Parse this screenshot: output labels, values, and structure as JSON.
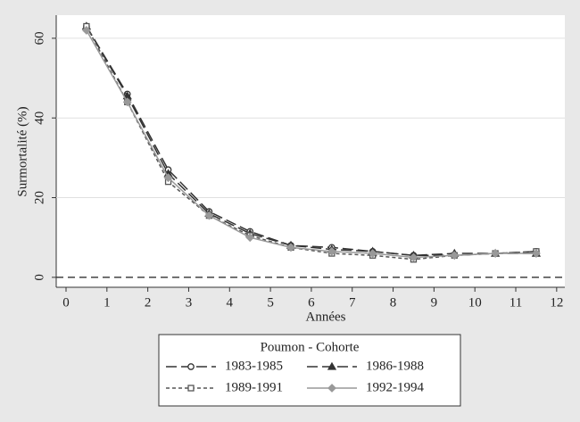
{
  "chart_data": {
    "type": "line",
    "x_label": "Années",
    "y_label": "Surmortalité (%)",
    "legend_title": "Poumon - Cohorte",
    "x": [
      0.5,
      1.5,
      2.5,
      3.5,
      4.5,
      5.5,
      6.5,
      7.5,
      8.5,
      9.5,
      10.5,
      11.5
    ],
    "series": [
      {
        "name": "1983-1985",
        "color": "#333333",
        "marker": "circle",
        "dash": "long",
        "values": [
          63,
          46,
          27,
          16.5,
          11.5,
          8,
          7.5,
          6.5,
          5.5,
          5.5,
          6,
          6.5
        ]
      },
      {
        "name": "1986-1988",
        "color": "#333333",
        "marker": "triangle",
        "dash": "long",
        "values": [
          63,
          45.5,
          26,
          16,
          11,
          8,
          7,
          6.5,
          5.5,
          6,
          6,
          6
        ]
      },
      {
        "name": "1989-1991",
        "color": "#555555",
        "marker": "square",
        "dash": "short",
        "values": [
          63,
          44,
          24,
          15.5,
          10.5,
          7.5,
          6,
          5.5,
          4.5,
          5.5,
          6,
          6.5
        ]
      },
      {
        "name": "1992-1994",
        "color": "#999999",
        "marker": "diamond",
        "dash": "solid",
        "values": [
          62,
          44,
          25,
          15.5,
          10,
          7.5,
          6.5,
          6,
          5,
          5.5,
          6,
          6
        ]
      }
    ],
    "xlim": [
      -0.24,
      12.2
    ],
    "ylim": [
      -2.5,
      65.8
    ],
    "xticks": [
      0,
      1,
      2,
      3,
      4,
      5,
      6,
      7,
      8,
      9,
      10,
      11,
      12
    ],
    "yticks": [
      0,
      20,
      40,
      60
    ],
    "grid": true,
    "reference_line": 0
  }
}
